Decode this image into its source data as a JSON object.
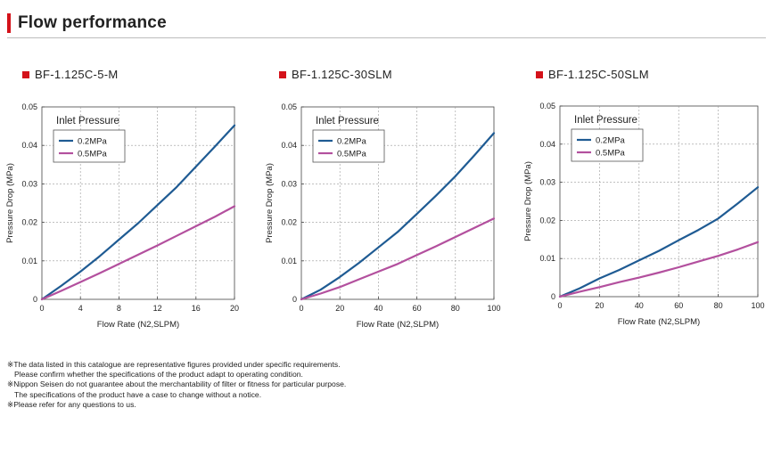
{
  "header": {
    "title": "Flow performance"
  },
  "colors": {
    "accent": "#d4121a",
    "series_0_2": "#1f5b93",
    "series_0_5": "#b3509e"
  },
  "chart_data": [
    {
      "type": "line",
      "title": "BF-1.125C-5-M",
      "xlabel": "Flow Rate (N2,SLPM)",
      "ylabel": "Pressure Drop (MPa)",
      "xlim": [
        0,
        20
      ],
      "ylim": [
        0,
        0.05
      ],
      "xticks": [
        "0",
        "4",
        "8",
        "12",
        "16",
        "20"
      ],
      "xtick_values": [
        0,
        4,
        8,
        12,
        16,
        20
      ],
      "yticks": [
        "0",
        "0.01",
        "0.02",
        "0.03",
        "0.04",
        "0.05"
      ],
      "ytick_values": [
        0,
        0.01,
        0.02,
        0.03,
        0.04,
        0.05
      ],
      "grid": true,
      "legend_title": "Inlet Pressure",
      "legend_position": "top-left",
      "series": [
        {
          "name": "0.2MPa",
          "x": [
            0,
            2,
            4,
            6,
            8,
            10,
            12,
            14,
            16,
            18,
            20
          ],
          "y": [
            0,
            0.0035,
            0.0072,
            0.0112,
            0.0155,
            0.0198,
            0.0245,
            0.0292,
            0.0345,
            0.0398,
            0.0452
          ]
        },
        {
          "name": "0.5MPa",
          "x": [
            0,
            2,
            4,
            6,
            8,
            10,
            12,
            14,
            16,
            18,
            20
          ],
          "y": [
            0,
            0.0022,
            0.0045,
            0.0068,
            0.0092,
            0.0116,
            0.014,
            0.0165,
            0.019,
            0.0215,
            0.0242
          ]
        }
      ]
    },
    {
      "type": "line",
      "title": "BF-1.125C-30SLM",
      "xlabel": "Flow Rate (N2,SLPM)",
      "ylabel": "Pressure Drop (MPa)",
      "xlim": [
        0,
        100
      ],
      "ylim": [
        0,
        0.05
      ],
      "xticks": [
        "0",
        "20",
        "40",
        "60",
        "80",
        "100"
      ],
      "xtick_values": [
        0,
        20,
        40,
        60,
        80,
        100
      ],
      "yticks": [
        "0",
        "0.01",
        "0.02",
        "0.03",
        "0.04",
        "0.05"
      ],
      "ytick_values": [
        0,
        0.01,
        0.02,
        0.03,
        0.04,
        0.05
      ],
      "grid": true,
      "legend_title": "Inlet Pressure",
      "legend_position": "top-left",
      "series": [
        {
          "name": "0.2MPa",
          "x": [
            0,
            10,
            20,
            30,
            40,
            50,
            60,
            70,
            80,
            90,
            100
          ],
          "y": [
            0,
            0.0025,
            0.0058,
            0.0095,
            0.0135,
            0.0175,
            0.0222,
            0.027,
            0.032,
            0.0375,
            0.0432
          ]
        },
        {
          "name": "0.5MPa",
          "x": [
            0,
            10,
            20,
            30,
            40,
            50,
            60,
            70,
            80,
            90,
            100
          ],
          "y": [
            0,
            0.0015,
            0.0032,
            0.0052,
            0.0072,
            0.0092,
            0.0115,
            0.0138,
            0.0162,
            0.0186,
            0.021
          ]
        }
      ]
    },
    {
      "type": "line",
      "title": "BF-1.125C-50SLM",
      "xlabel": "Flow Rate (N2,SLPM)",
      "ylabel": "Pressure Drop (MPa)",
      "xlim": [
        0,
        100
      ],
      "ylim": [
        0,
        0.05
      ],
      "xticks": [
        "0",
        "20",
        "40",
        "60",
        "80",
        "100"
      ],
      "xtick_values": [
        0,
        20,
        40,
        60,
        80,
        100
      ],
      "yticks": [
        "0",
        "0.01",
        "0.02",
        "0.03",
        "0.04",
        "0.05"
      ],
      "ytick_values": [
        0,
        0.01,
        0.02,
        0.03,
        0.04,
        0.05
      ],
      "grid": true,
      "legend_title": "Inlet Pressure",
      "legend_position": "top-left",
      "series": [
        {
          "name": "0.2MPa",
          "x": [
            0,
            10,
            20,
            30,
            40,
            50,
            60,
            70,
            80,
            90,
            100
          ],
          "y": [
            0,
            0.0022,
            0.0048,
            0.007,
            0.0095,
            0.012,
            0.0148,
            0.0175,
            0.0205,
            0.0245,
            0.0287
          ]
        },
        {
          "name": "0.5MPa",
          "x": [
            0,
            10,
            20,
            30,
            40,
            50,
            60,
            70,
            80,
            90,
            100
          ],
          "y": [
            0,
            0.0013,
            0.0025,
            0.0038,
            0.005,
            0.0063,
            0.0077,
            0.0092,
            0.0107,
            0.0124,
            0.0143
          ]
        }
      ]
    }
  ],
  "notes": [
    "※The data listed in this catalogue are representative figures provided under specific requirements.",
    "Please confirm whether the specifications of the product adapt to operating condition.",
    "※Nippon Seisen do not guarantee about the merchantability of filter or fitness for particular purpose.",
    "The specifications of the product have a case to change without a notice.",
    "※Please refer for any questions to us."
  ]
}
